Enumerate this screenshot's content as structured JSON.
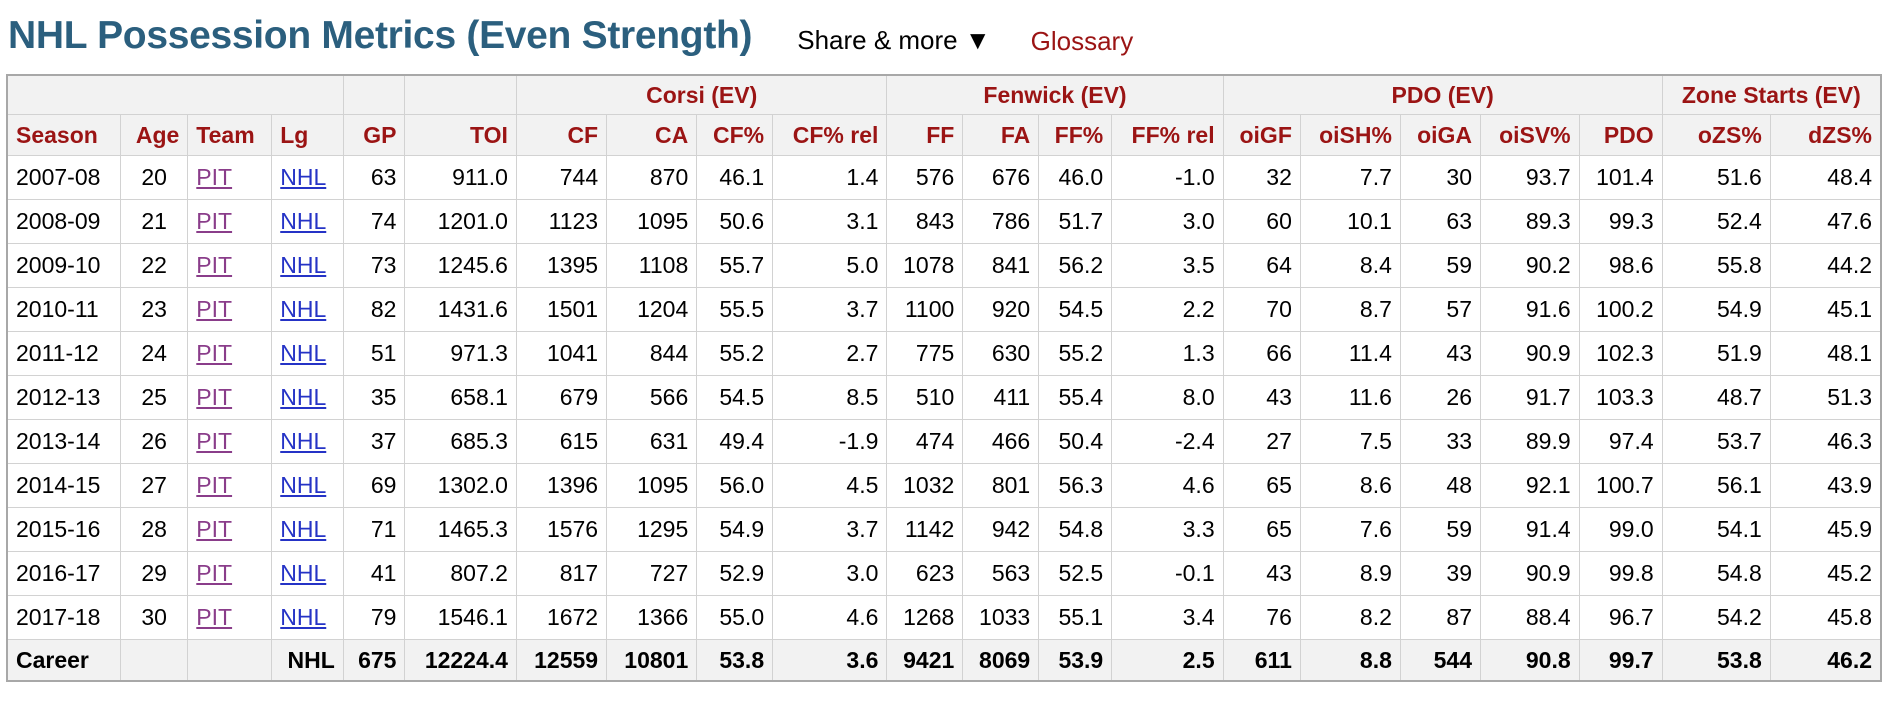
{
  "title": "NHL Possession Metrics (Even Strength)",
  "share_label": "Share & more ▼",
  "glossary_label": "Glossary",
  "groups": [
    "Corsi (EV)",
    "Fenwick (EV)",
    "PDO (EV)",
    "Zone Starts (EV)"
  ],
  "columns": [
    "Season",
    "Age",
    "Team",
    "Lg",
    "GP",
    "TOI",
    "CF",
    "CA",
    "CF%",
    "CF% rel",
    "FF",
    "FA",
    "FF%",
    "FF% rel",
    "oiGF",
    "oiSH%",
    "oiGA",
    "oiSV%",
    "PDO",
    "oZS%",
    "dZS%"
  ],
  "rows": [
    [
      "2007-08",
      "20",
      "PIT",
      "NHL",
      "63",
      "911.0",
      "744",
      "870",
      "46.1",
      "1.4",
      "576",
      "676",
      "46.0",
      "-1.0",
      "32",
      "7.7",
      "30",
      "93.7",
      "101.4",
      "51.6",
      "48.4"
    ],
    [
      "2008-09",
      "21",
      "PIT",
      "NHL",
      "74",
      "1201.0",
      "1123",
      "1095",
      "50.6",
      "3.1",
      "843",
      "786",
      "51.7",
      "3.0",
      "60",
      "10.1",
      "63",
      "89.3",
      "99.3",
      "52.4",
      "47.6"
    ],
    [
      "2009-10",
      "22",
      "PIT",
      "NHL",
      "73",
      "1245.6",
      "1395",
      "1108",
      "55.7",
      "5.0",
      "1078",
      "841",
      "56.2",
      "3.5",
      "64",
      "8.4",
      "59",
      "90.2",
      "98.6",
      "55.8",
      "44.2"
    ],
    [
      "2010-11",
      "23",
      "PIT",
      "NHL",
      "82",
      "1431.6",
      "1501",
      "1204",
      "55.5",
      "3.7",
      "1100",
      "920",
      "54.5",
      "2.2",
      "70",
      "8.7",
      "57",
      "91.6",
      "100.2",
      "54.9",
      "45.1"
    ],
    [
      "2011-12",
      "24",
      "PIT",
      "NHL",
      "51",
      "971.3",
      "1041",
      "844",
      "55.2",
      "2.7",
      "775",
      "630",
      "55.2",
      "1.3",
      "66",
      "11.4",
      "43",
      "90.9",
      "102.3",
      "51.9",
      "48.1"
    ],
    [
      "2012-13",
      "25",
      "PIT",
      "NHL",
      "35",
      "658.1",
      "679",
      "566",
      "54.5",
      "8.5",
      "510",
      "411",
      "55.4",
      "8.0",
      "43",
      "11.6",
      "26",
      "91.7",
      "103.3",
      "48.7",
      "51.3"
    ],
    [
      "2013-14",
      "26",
      "PIT",
      "NHL",
      "37",
      "685.3",
      "615",
      "631",
      "49.4",
      "-1.9",
      "474",
      "466",
      "50.4",
      "-2.4",
      "27",
      "7.5",
      "33",
      "89.9",
      "97.4",
      "53.7",
      "46.3"
    ],
    [
      "2014-15",
      "27",
      "PIT",
      "NHL",
      "69",
      "1302.0",
      "1396",
      "1095",
      "56.0",
      "4.5",
      "1032",
      "801",
      "56.3",
      "4.6",
      "65",
      "8.6",
      "48",
      "92.1",
      "100.7",
      "56.1",
      "43.9"
    ],
    [
      "2015-16",
      "28",
      "PIT",
      "NHL",
      "71",
      "1465.3",
      "1576",
      "1295",
      "54.9",
      "3.7",
      "1142",
      "942",
      "54.8",
      "3.3",
      "65",
      "7.6",
      "59",
      "91.4",
      "99.0",
      "54.1",
      "45.9"
    ],
    [
      "2016-17",
      "29",
      "PIT",
      "NHL",
      "41",
      "807.2",
      "817",
      "727",
      "52.9",
      "3.0",
      "623",
      "563",
      "52.5",
      "-0.1",
      "43",
      "8.9",
      "39",
      "90.9",
      "99.8",
      "54.8",
      "45.2"
    ],
    [
      "2017-18",
      "30",
      "PIT",
      "NHL",
      "79",
      "1546.1",
      "1672",
      "1366",
      "55.0",
      "4.6",
      "1268",
      "1033",
      "55.1",
      "3.4",
      "76",
      "8.2",
      "87",
      "88.4",
      "96.7",
      "54.2",
      "45.8"
    ]
  ],
  "footer": [
    "Career",
    "",
    "",
    "NHL",
    "675",
    "12224.4",
    "12559",
    "10801",
    "53.8",
    "3.6",
    "9421",
    "8069",
    "53.9",
    "2.5",
    "611",
    "8.8",
    "544",
    "90.8",
    "99.7",
    "53.8",
    "46.2"
  ],
  "colors": {
    "title": "#2b5f7e",
    "header_text": "#9b1414",
    "link_team": "#8a3d8a",
    "link_league": "#2533c6",
    "header_bg": "#f2f2f2"
  }
}
